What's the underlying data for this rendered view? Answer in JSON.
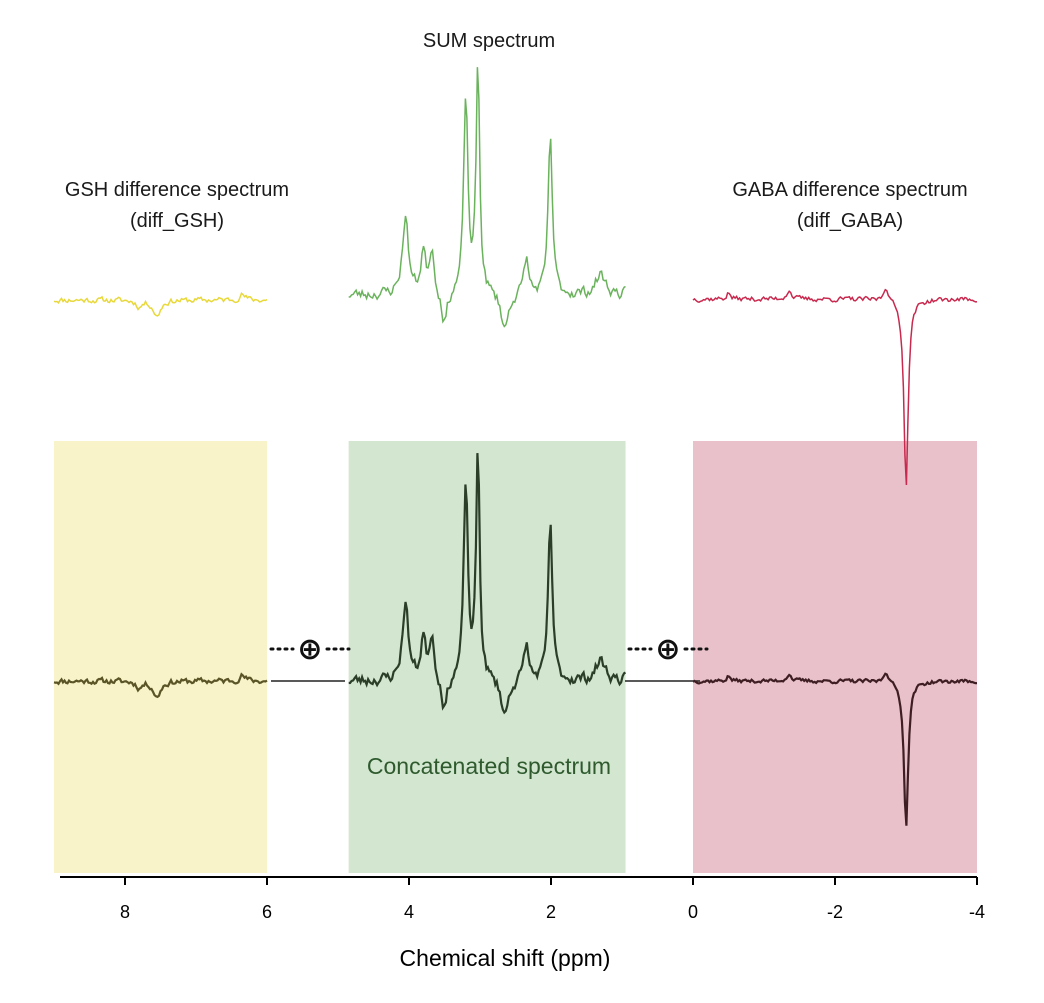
{
  "chart_data": {
    "type": "line",
    "title": "",
    "xlabel": "Chemical shift (ppm)",
    "ylabel": "",
    "xlim": [
      9,
      -4
    ],
    "x_ticks": [
      "8",
      "6",
      "4",
      "2",
      "0",
      "-2",
      "-4"
    ],
    "x_tick_values": [
      8,
      6,
      4,
      2,
      0,
      -2,
      -4
    ],
    "colors": {
      "gsh": "#e8d83a",
      "sum": "#6ab25c",
      "gaba": "#c8294e",
      "gsh_region": "#f8f3c9",
      "sum_region": "#d3e6d0",
      "gaba_region": "#e9c1ca",
      "concat_gsh": "#5a5427",
      "concat_sum": "#2b3f28",
      "concat_gaba": "#3e1e22",
      "label_green": "#2e5a2e"
    },
    "panels": [
      {
        "id": "gsh",
        "title_line1": "GSH difference spectrum",
        "title_line2": "(diff_GSH)",
        "ppm_range": [
          9,
          6
        ],
        "peaks": [
          {
            "ppm": 7.55,
            "amp": -0.9,
            "width": 0.06
          },
          {
            "ppm": 7.8,
            "amp": -0.35,
            "width": 0.05
          },
          {
            "ppm": 6.35,
            "amp": 0.3,
            "width": 0.05
          }
        ]
      },
      {
        "id": "sum",
        "title_line1": "SUM spectrum",
        "title_line2": "",
        "ppm_range": [
          4.85,
          0.95
        ],
        "peaks": [
          {
            "ppm": 4.05,
            "amp": 1.9,
            "width": 0.05
          },
          {
            "ppm": 3.8,
            "amp": 1.0,
            "width": 0.04
          },
          {
            "ppm": 3.68,
            "amp": 1.1,
            "width": 0.04
          },
          {
            "ppm": 3.5,
            "amp": -0.8,
            "width": 0.05
          },
          {
            "ppm": 3.2,
            "amp": 4.8,
            "width": 0.035
          },
          {
            "ppm": 3.03,
            "amp": 5.6,
            "width": 0.03
          },
          {
            "ppm": 2.65,
            "amp": -0.9,
            "width": 0.06
          },
          {
            "ppm": 2.35,
            "amp": 0.9,
            "width": 0.04
          },
          {
            "ppm": 2.01,
            "amp": 3.9,
            "width": 0.035
          },
          {
            "ppm": 1.3,
            "amp": 0.5,
            "width": 0.08
          }
        ]
      },
      {
        "id": "gaba",
        "title_line1": "GABA difference spectrum",
        "title_line2": "(diff_GABA)",
        "ppm_range": [
          0.0,
          -4.0
        ],
        "peaks": [
          {
            "ppm": -1.35,
            "amp": 0.5,
            "width": 0.04
          },
          {
            "ppm": -2.72,
            "amp": 0.85,
            "width": 0.04
          },
          {
            "ppm": -3.0,
            "amp": -10.5,
            "width": 0.035
          },
          {
            "ppm": -0.5,
            "amp": 0.35,
            "width": 0.03
          }
        ]
      }
    ],
    "concatenated_label": "Concatenated spectrum",
    "operator_symbol": "⊕"
  }
}
